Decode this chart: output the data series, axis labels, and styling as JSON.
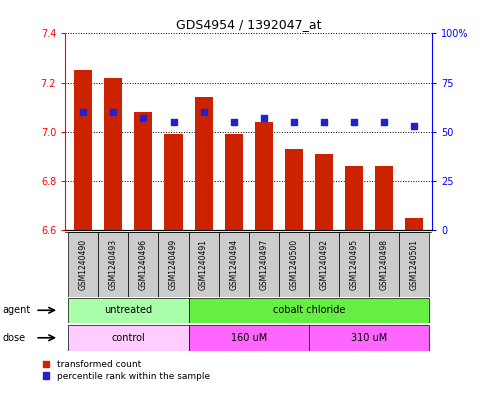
{
  "title": "GDS4954 / 1392047_at",
  "samples": [
    "GSM1240490",
    "GSM1240493",
    "GSM1240496",
    "GSM1240499",
    "GSM1240491",
    "GSM1240494",
    "GSM1240497",
    "GSM1240500",
    "GSM1240492",
    "GSM1240495",
    "GSM1240498",
    "GSM1240501"
  ],
  "bar_values": [
    7.25,
    7.22,
    7.08,
    6.99,
    7.14,
    6.99,
    7.04,
    6.93,
    6.91,
    6.86,
    6.86,
    6.65
  ],
  "percentile_values": [
    60,
    60,
    57,
    55,
    60,
    55,
    57,
    55,
    55,
    55,
    55,
    53
  ],
  "bar_bottom": 6.6,
  "ylim": [
    6.6,
    7.4
  ],
  "ylim_right": [
    0,
    100
  ],
  "yticks_left": [
    6.6,
    6.8,
    7.0,
    7.2,
    7.4
  ],
  "yticks_right": [
    0,
    25,
    50,
    75,
    100
  ],
  "bar_color": "#cc2200",
  "dot_color": "#2222cc",
  "grid_color": "#000000",
  "agent_label": "agent",
  "dose_label": "dose",
  "legend_bar_label": "transformed count",
  "legend_dot_label": "percentile rank within the sample",
  "sample_bg_color": "#cccccc",
  "untreated_color": "#aaffaa",
  "cobalt_color": "#66ee44",
  "control_color": "#ffccff",
  "dose_pink_color": "#ff66ff"
}
